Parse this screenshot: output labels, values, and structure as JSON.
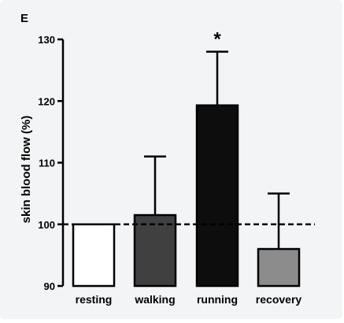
{
  "panel_label": "E",
  "chart_data": {
    "type": "bar",
    "ylabel": "skin blood flow (%)",
    "xlabel": "",
    "ylim": [
      90,
      130
    ],
    "yticks": [
      90,
      100,
      110,
      120,
      130
    ],
    "categories": [
      "resting",
      "walking",
      "running",
      "recovery"
    ],
    "values": [
      100,
      101.5,
      119.3,
      96
    ],
    "error_upper": [
      0,
      9.5,
      8.7,
      9
    ],
    "bar_colors": [
      "#ffffff",
      "#404040",
      "#0d0d0d",
      "#8c8c8c"
    ],
    "reference_line": 100,
    "annotations": [
      {
        "category": "running",
        "text": "*"
      }
    ],
    "grid": false,
    "legend": "none"
  }
}
